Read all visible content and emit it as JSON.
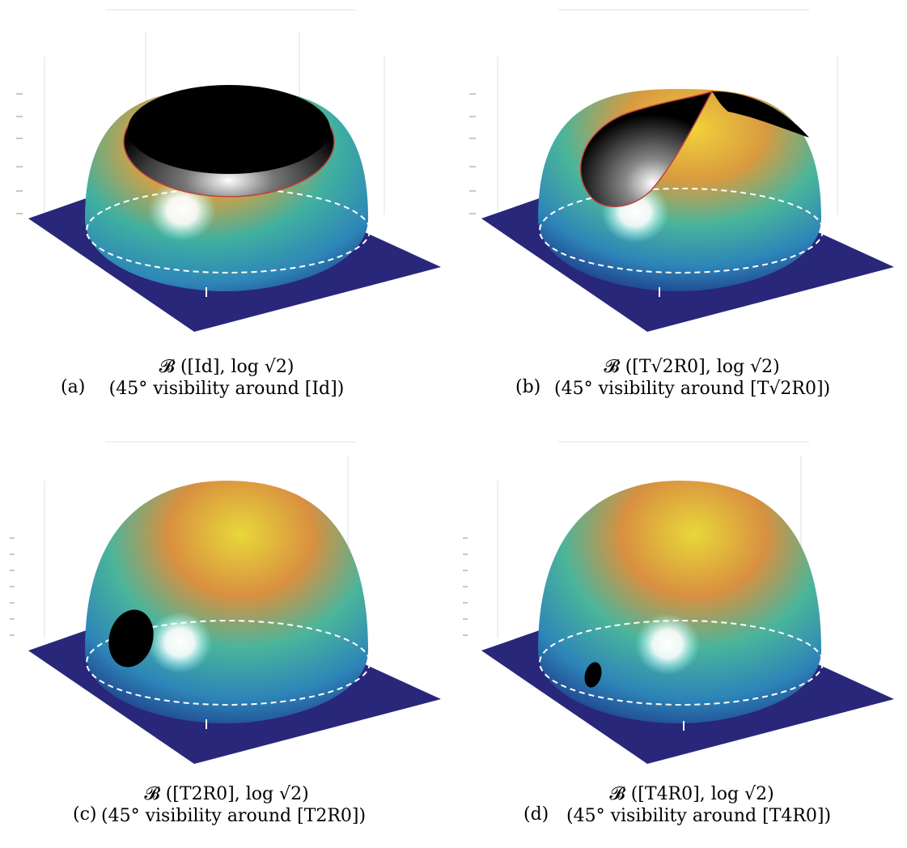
{
  "panels": [
    {
      "id": "a",
      "label": "(a)",
      "caption_line1": "𝓑 ([Id], log √2)",
      "caption_line2": "(45° visibility around [Id])",
      "cap_kind": "top"
    },
    {
      "id": "b",
      "label": "(b)",
      "caption_line1": "𝓑 ([T√2R0], log √2)",
      "caption_line2": "(45° visibility around [T√2R0])",
      "cap_kind": "two-lens"
    },
    {
      "id": "c",
      "label": "(c)",
      "caption_line1": "𝓑 ([T2R0], log √2)",
      "caption_line2": "(45° visibility around [T2R0])",
      "cap_kind": "small"
    },
    {
      "id": "d",
      "label": "(d)",
      "caption_line1": "𝓑 ([T4R0], log √2)",
      "caption_line2": "(45° visibility around [T4R0])",
      "cap_kind": "tiny"
    }
  ],
  "colors": {
    "floor": "#2a2a7c",
    "cap": "#000000",
    "cap_edge": "#d04040",
    "dashed_circle": "#ffffff",
    "grid": "#d8d8d8"
  }
}
